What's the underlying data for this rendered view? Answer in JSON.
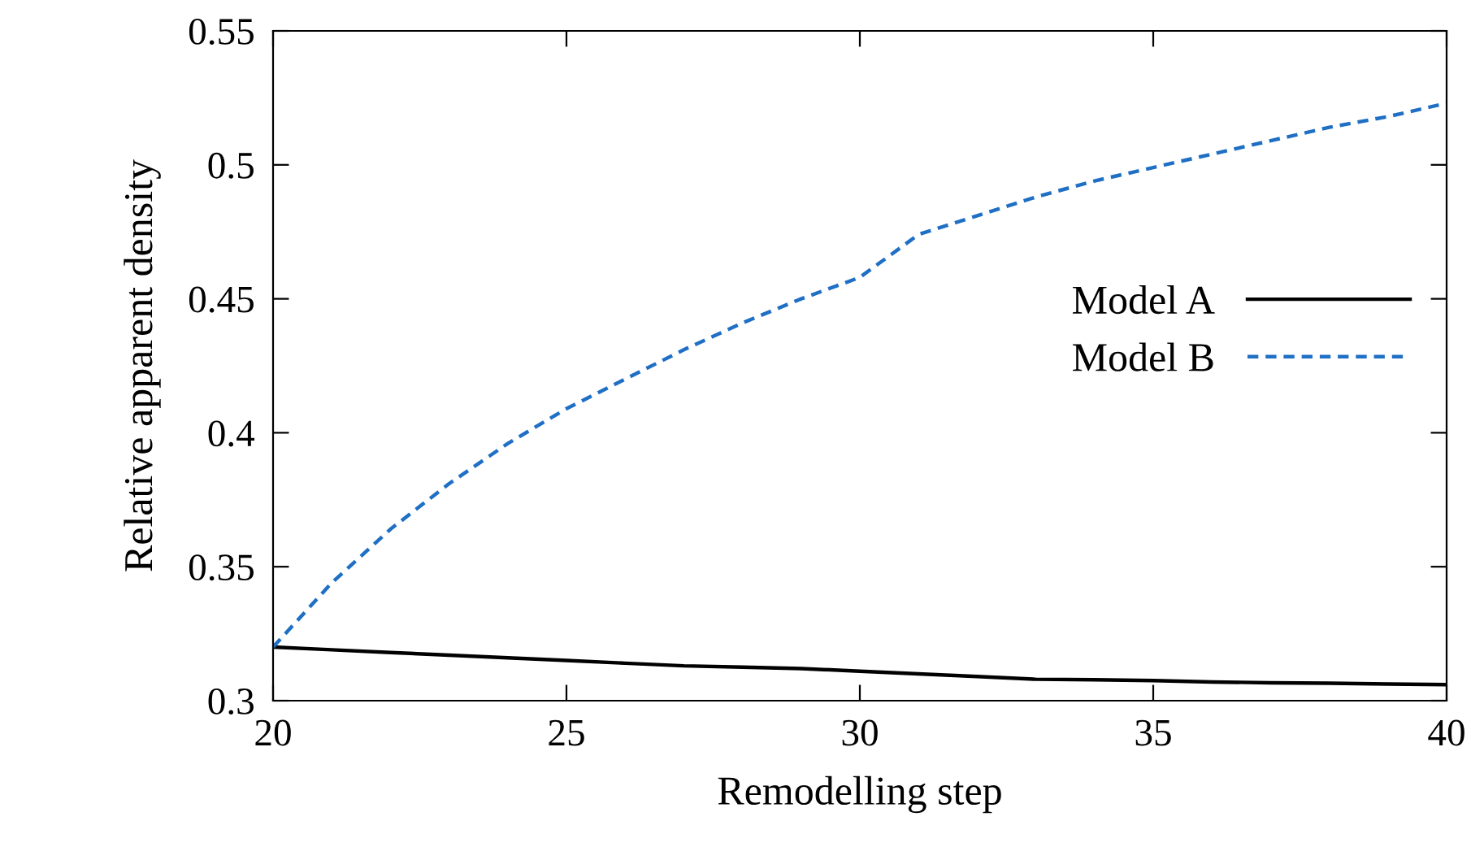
{
  "chart_data": {
    "type": "line",
    "xlabel": "Remodelling step",
    "ylabel": "Relative apparent density",
    "x": [
      20,
      21,
      22,
      23,
      24,
      25,
      26,
      27,
      28,
      29,
      30,
      31,
      32,
      33,
      34,
      35,
      36,
      37,
      38,
      39,
      40
    ],
    "series": [
      {
        "name": "Model A",
        "color": "#000000",
        "line_style": "solid",
        "values": [
          0.32,
          0.319,
          0.318,
          0.317,
          0.316,
          0.315,
          0.314,
          0.313,
          0.3125,
          0.312,
          0.311,
          0.31,
          0.309,
          0.308,
          0.3078,
          0.3075,
          0.307,
          0.3067,
          0.3065,
          0.3062,
          0.306
        ]
      },
      {
        "name": "Model B",
        "color": "#1f6fc5",
        "line_style": "dashed",
        "values": [
          0.32,
          0.344,
          0.364,
          0.381,
          0.396,
          0.409,
          0.42,
          0.431,
          0.441,
          0.45,
          0.458,
          0.474,
          0.481,
          0.488,
          0.494,
          0.499,
          0.504,
          0.509,
          0.514,
          0.518,
          0.523
        ]
      }
    ],
    "xlim": [
      20,
      40
    ],
    "ylim": [
      0.3,
      0.55
    ],
    "xticks": [
      20,
      25,
      30,
      35,
      40
    ],
    "yticks": [
      0.3,
      0.35,
      0.4,
      0.45,
      0.5,
      0.55
    ],
    "grid": false,
    "legend": "center right",
    "marker": "none"
  }
}
